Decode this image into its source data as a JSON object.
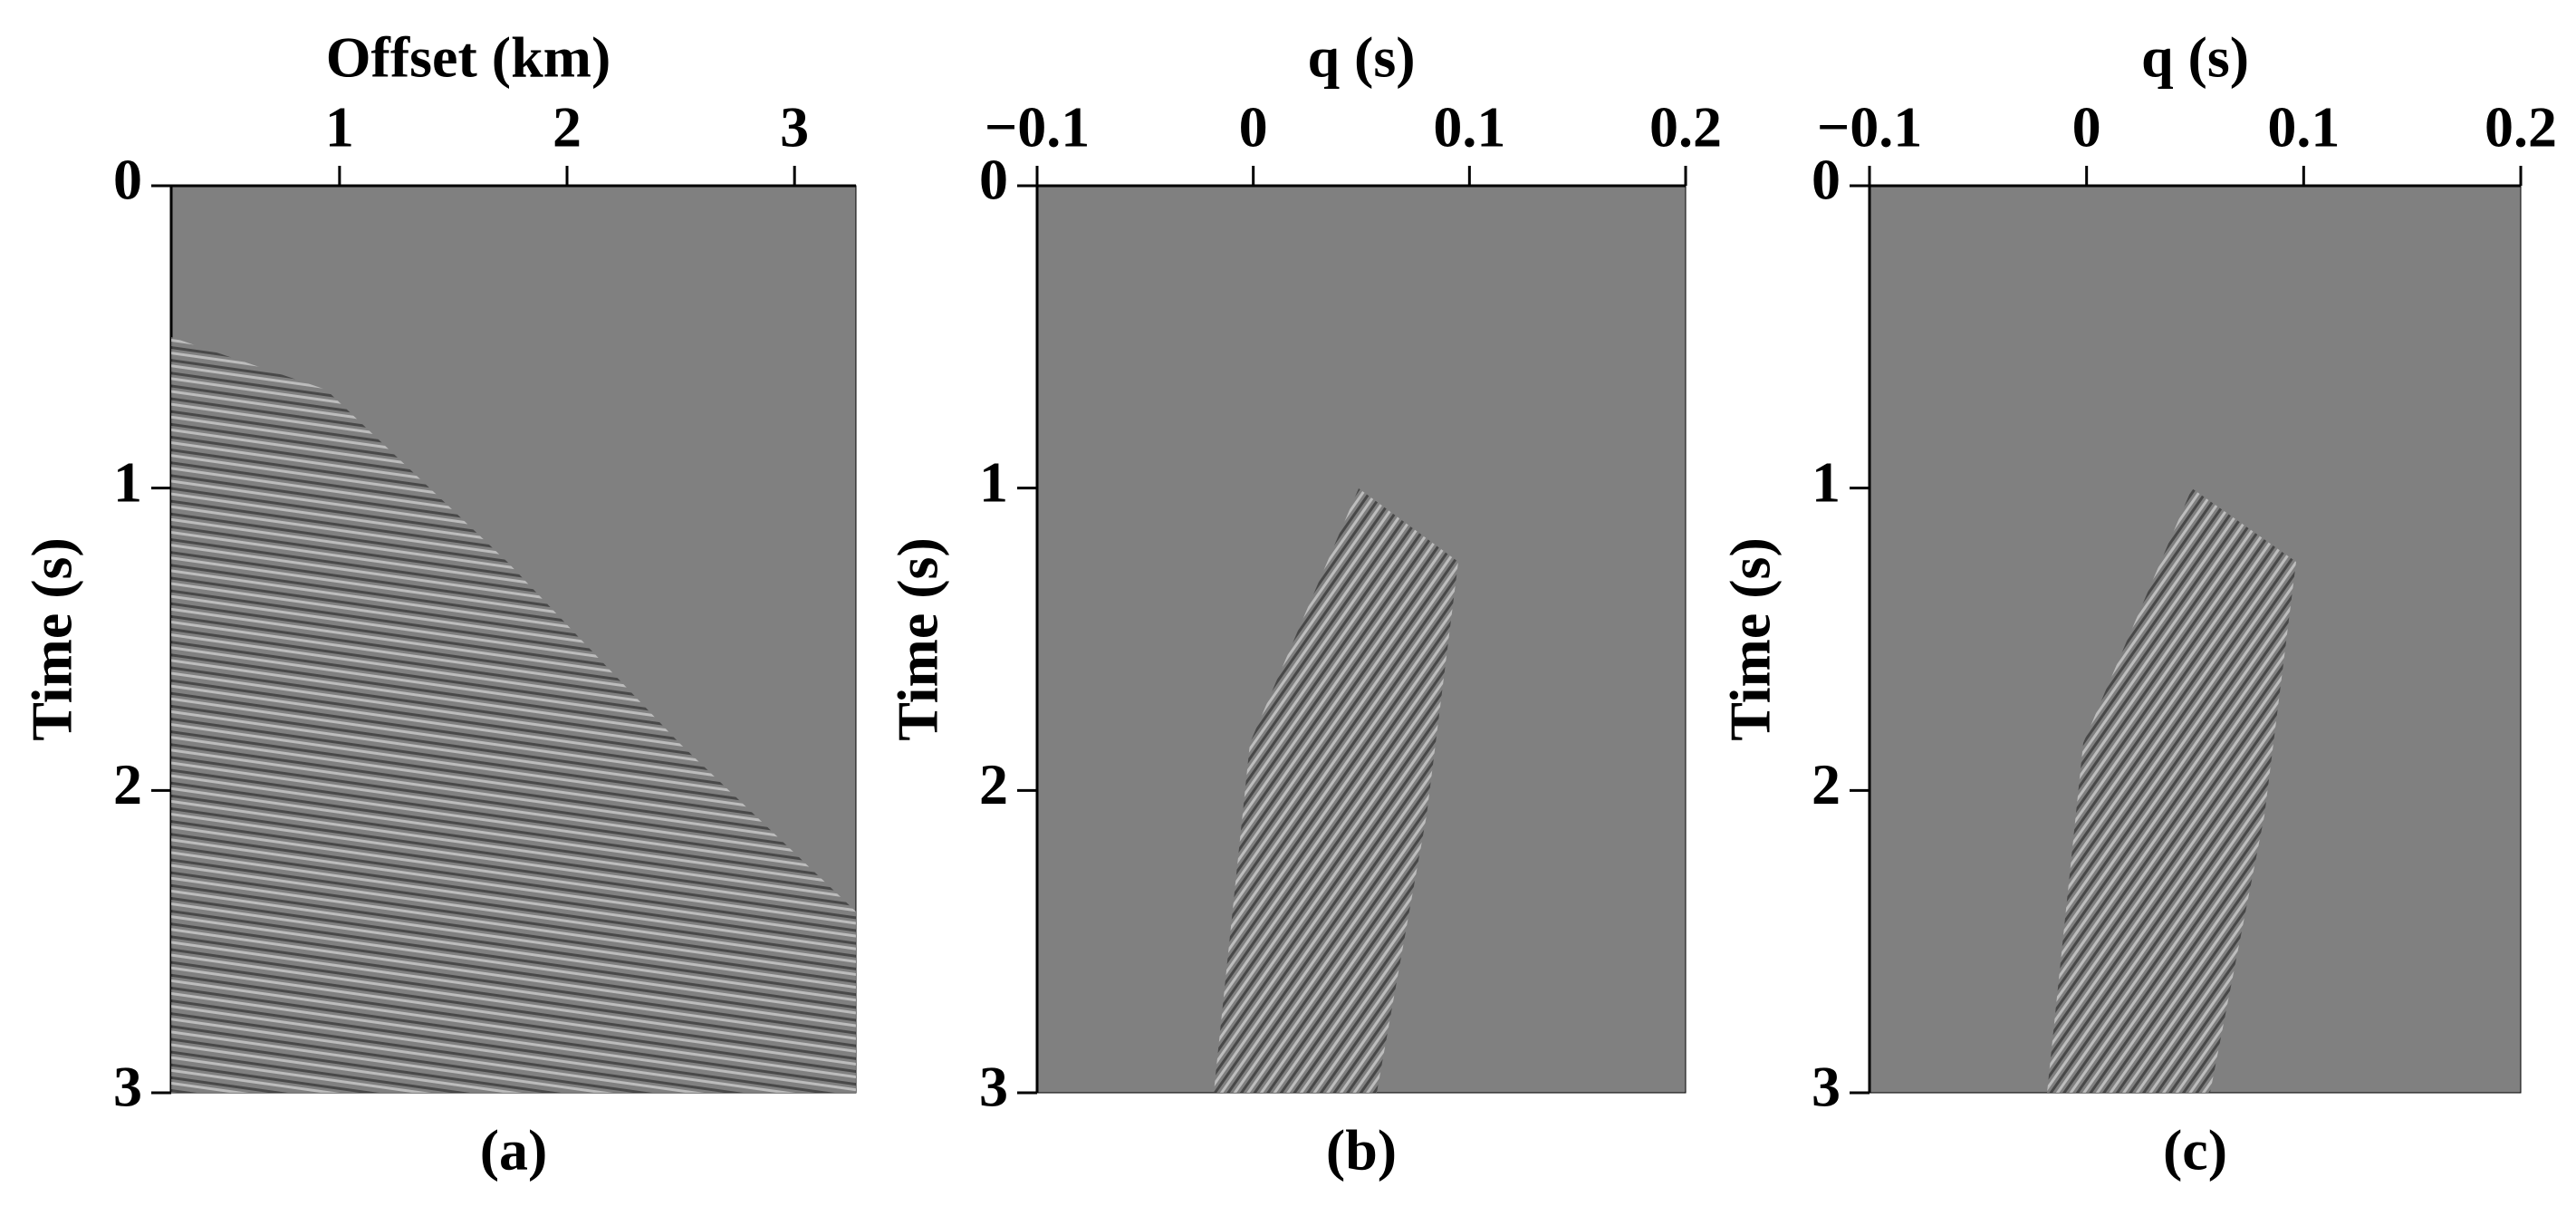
{
  "chart_data": [
    {
      "type": "image",
      "xlabel": "Offset (km)",
      "ylabel": "Time (s)",
      "caption": "(a)",
      "xlim": [
        0.26,
        3.27
      ],
      "xticks": [
        1,
        2,
        3
      ],
      "ylim": [
        3,
        0
      ],
      "yticks": [
        0,
        1,
        2,
        3
      ],
      "xaxis_position": "top",
      "color": "#808080"
    },
    {
      "type": "image",
      "xlabel": "q (s)",
      "ylabel": "Time (s)",
      "caption": "(b)",
      "xlim": [
        -0.1,
        0.2
      ],
      "xticks": [
        {
          "value": -0.1,
          "label": "−0.1"
        },
        0,
        0.1,
        0.2
      ],
      "ylim": [
        3,
        0
      ],
      "yticks": [
        0,
        1,
        2,
        3
      ],
      "xaxis_position": "top",
      "color": "#808080"
    },
    {
      "type": "image",
      "xlabel": "q (s)",
      "ylabel": "Time (s)",
      "caption": "(c)",
      "xlim": [
        -0.1,
        0.2
      ],
      "xticks": [
        {
          "value": -0.1,
          "label": "−0.1"
        },
        0,
        0.1,
        0.2
      ],
      "ylim": [
        3,
        0
      ],
      "yticks": [
        0,
        1,
        2,
        3
      ],
      "xaxis_position": "top",
      "color": "#808080"
    }
  ]
}
